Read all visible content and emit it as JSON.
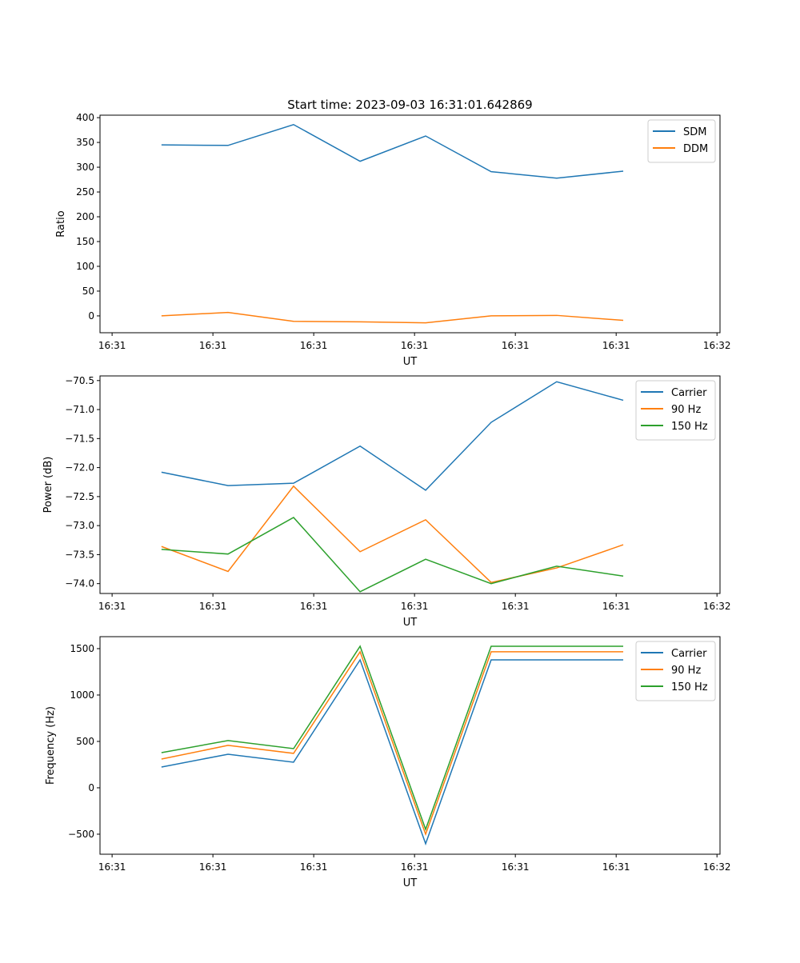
{
  "chart_data": [
    {
      "type": "line",
      "title": "Start time: 2023-09-03 16:31:01.642869",
      "xlabel": "UT",
      "ylabel": "Ratio",
      "x": [
        4.9,
        11.5,
        18.0,
        24.6,
        31.1,
        37.6,
        44.1,
        50.7
      ],
      "xlim": [
        -1.2,
        60.3
      ],
      "xticks": [
        0,
        10,
        20,
        30,
        40,
        50,
        60
      ],
      "xtick_labels": [
        "16:31",
        "16:31",
        "16:31",
        "16:31",
        "16:31",
        "16:31",
        "16:32"
      ],
      "ylim": [
        -34,
        405
      ],
      "yticks": [
        0,
        50,
        100,
        150,
        200,
        250,
        300,
        350,
        400
      ],
      "ytick_labels": [
        "0",
        "50",
        "100",
        "150",
        "200",
        "250",
        "300",
        "350",
        "400"
      ],
      "legend": "top-right",
      "series": [
        {
          "name": "SDM",
          "color": "#1f77b4",
          "values": [
            345,
            344,
            386,
            312,
            363,
            291,
            278,
            292
          ]
        },
        {
          "name": "DDM",
          "color": "#ff7f0e",
          "values": [
            0,
            7,
            -11,
            -12,
            -14,
            0,
            1,
            -9
          ]
        }
      ]
    },
    {
      "type": "line",
      "title": "",
      "xlabel": "UT",
      "ylabel": "Power (dB)",
      "x": [
        4.9,
        11.5,
        18.0,
        24.6,
        31.1,
        37.6,
        44.1,
        50.7
      ],
      "xlim": [
        -1.2,
        60.3
      ],
      "xticks": [
        0,
        10,
        20,
        30,
        40,
        50,
        60
      ],
      "xtick_labels": [
        "16:31",
        "16:31",
        "16:31",
        "16:31",
        "16:31",
        "16:31",
        "16:32"
      ],
      "ylim": [
        -74.17,
        -70.42
      ],
      "yticks": [
        -74.0,
        -73.5,
        -73.0,
        -72.5,
        -72.0,
        -71.5,
        -71.0,
        -70.5
      ],
      "ytick_labels": [
        "−74.0",
        "−73.5",
        "−73.0",
        "−72.5",
        "−72.0",
        "−71.5",
        "−71.0",
        "−70.5"
      ],
      "legend": "top-right",
      "series": [
        {
          "name": "Carrier",
          "color": "#1f77b4",
          "values": [
            -72.08,
            -72.31,
            -72.27,
            -71.63,
            -72.39,
            -71.22,
            -70.52,
            -70.84
          ]
        },
        {
          "name": "90 Hz",
          "color": "#ff7f0e",
          "values": [
            -73.36,
            -73.79,
            -72.32,
            -73.45,
            -72.9,
            -73.98,
            -73.73,
            -73.33
          ]
        },
        {
          "name": "150 Hz",
          "color": "#2ca02c",
          "values": [
            -73.41,
            -73.49,
            -72.86,
            -74.14,
            -73.58,
            -74.0,
            -73.7,
            -73.87
          ]
        }
      ]
    },
    {
      "type": "line",
      "title": "",
      "xlabel": "UT",
      "ylabel": "Frequency (Hz)",
      "x": [
        4.9,
        11.5,
        18.0,
        24.6,
        31.1,
        37.6,
        44.1,
        50.7
      ],
      "xlim": [
        -1.2,
        60.3
      ],
      "xticks": [
        0,
        10,
        20,
        30,
        40,
        50,
        60
      ],
      "xtick_labels": [
        "16:31",
        "16:31",
        "16:31",
        "16:31",
        "16:31",
        "16:31",
        "16:32"
      ],
      "ylim": [
        -716,
        1629
      ],
      "yticks": [
        -500,
        0,
        500,
        1000,
        1500
      ],
      "ytick_labels": [
        "−500",
        "0",
        "500",
        "1000",
        "1500"
      ],
      "legend": "top-right",
      "series": [
        {
          "name": "Carrier",
          "color": "#1f77b4",
          "values": [
            224,
            362,
            276,
            1379,
            -603,
            1379,
            1379,
            1379
          ]
        },
        {
          "name": "90 Hz",
          "color": "#ff7f0e",
          "values": [
            310,
            457,
            371,
            1466,
            -500,
            1466,
            1466,
            1466
          ]
        },
        {
          "name": "150 Hz",
          "color": "#2ca02c",
          "values": [
            379,
            509,
            422,
            1526,
            -448,
            1526,
            1526,
            1526
          ]
        }
      ]
    }
  ]
}
